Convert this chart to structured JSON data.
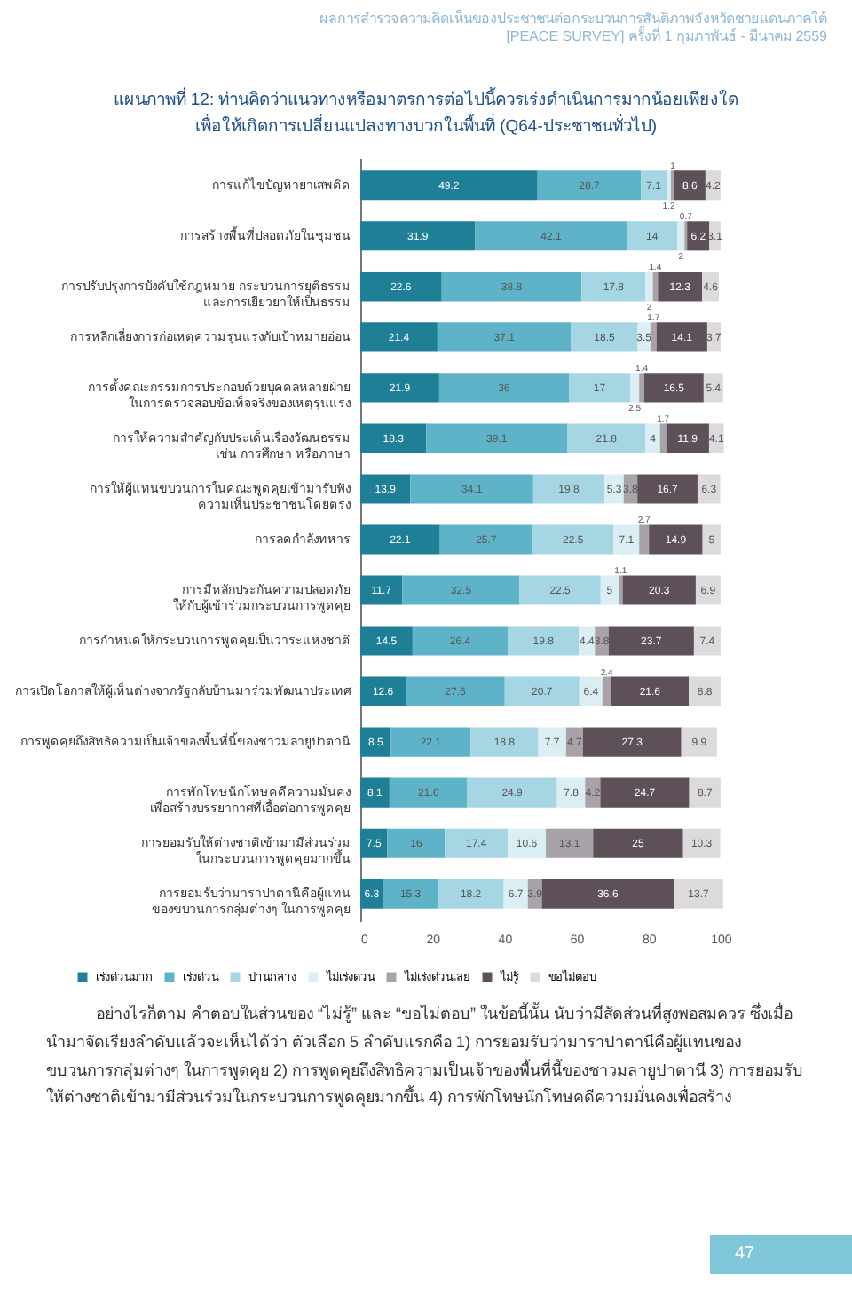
{
  "chart_data": {
    "type": "bar",
    "orientation": "horizontal",
    "stacked": true,
    "title": "แผนภาพที่ 12: ท่านคิดว่าแนวทางหรือมาตรการต่อไปนี้ควรเร่งดำเนินการมากน้อยเพียงใด\nเพื่อให้เกิดการเปลี่ยนแปลงทางบวกในพื้นที่ (Q64-ประชาชนทั่วไป)",
    "annotations": [
      "ผลการสำรวจความคิดเห็นของประชาชนต่อกระบวนการสันติภาพจังหวัดชายแดนภาคใต้",
      "[PEACE SURVEY] ครั้งที่ 1 กุมภาพันธ์ - มีนาคม 2559",
      "อย่างไรก็ตาม คำตอบในส่วนของ “ไม่รู้” และ “ขอไม่ตอบ” ในข้อนี้นั้น นับว่ามีสัดส่วนที่สูงพอสมควร ซึ่งเมื่อนำมาจัดเรียงลำดับแล้วจะเห็นได้ว่า ตัวเลือก 5 ลำดับแรกคือ 1) การยอมรับว่ามาราปาตานีคือผู้แทนของขบวนการกลุ่มต่างๆ ในการพูดคุย 2) การพูดคุยถึงสิทธิความเป็นเจ้าของพื้นที่นี้ของชาวมลายูปาตานี 3) การยอมรับให้ต่างชาติเข้ามามีส่วนร่วมในกระบวนการพูดคุยมากขึ้น 4) การพักโทษนักโทษคดีความมั่นคงเพื่อสร้าง",
      "47"
    ],
    "categories": [
      "การแก้ไขปัญหายาเสพติด",
      "การสร้างพื้นที่ปลอดภัยในชุมชน",
      "การปรับปรุงการบังคับใช้กฎหมาย กระบวนการยุติธรรม\nและการเยียวยาให้เป็นธรรม",
      "การหลีกเลี่ยงการก่อเหตุความรุนแรงกับเป้าหมายอ่อน",
      "การตั้งคณะกรรมการประกอบด้วยบุคคลหลายฝ่าย\nในการตรวจสอบข้อเท็จจริงของเหตุรุนแรง",
      "การให้ความสำคัญกับประเด็นเรื่องวัฒนธรรม\nเช่น การศึกษา หรือภาษา",
      "การให้ผู้แทนขบวนการในคณะพูดคุยเข้ามารับฟัง\nความเห็นประชาชนโดยตรง",
      "การลดกำลังทหาร",
      "การมีหลักประกันความปลอดภัย\nให้กับผู้เข้าร่วมกระบวนการพูดคุย",
      "การกำหนดให้กระบวนการพูดคุยเป็นวาระแห่งชาติ",
      "การเปิดโอกาสให้ผู้เห็นต่างจากรัฐกลับบ้านมาร่วมพัฒนาประเทศ",
      "การพูดคุยถึงสิทธิความเป็นเจ้าของพื้นที่นี้ของชาวมลายูปาตานี",
      "การพักโทษนักโทษคดีความมั่นคง\nเพื่อสร้างบรรยากาศที่เอื้อต่อการพูดคุย",
      "การยอมรับให้ต่างชาติเข้ามามีส่วนร่วม\nในกระบวนการพูดคุยมากขึ้น",
      "การยอมรับว่ามาราปาตานีคือผู้แทน\nของขบวนการกลุ่มต่างๆ ในการพูดคุย"
    ],
    "series": [
      {
        "name": "เร่งด่วนมาก",
        "color": "#1f7f96",
        "values": [
          49.2,
          31.9,
          22.6,
          21.4,
          21.9,
          18.3,
          13.9,
          22.1,
          11.7,
          14.5,
          12.6,
          8.5,
          8.1,
          7.5,
          6.3
        ]
      },
      {
        "name": "เร่งด่วน",
        "color": "#5fb3c9",
        "values": [
          28.7,
          42.1,
          38.8,
          37.1,
          36,
          39.1,
          34.1,
          25.7,
          32.5,
          26.4,
          27.5,
          22.1,
          21.6,
          16,
          15.3
        ]
      },
      {
        "name": "ปานกลาง",
        "color": "#a6d6e3",
        "values": [
          7.1,
          14,
          17.8,
          18.5,
          17,
          21.8,
          19.8,
          22.5,
          22.5,
          19.8,
          20.7,
          18.8,
          24.9,
          17.4,
          18.2
        ]
      },
      {
        "name": "ไม่เร่งด่วน",
        "color": "#daeef3",
        "values": [
          1.2,
          2,
          2,
          3.5,
          2.5,
          4,
          5.3,
          7.1,
          5,
          4.4,
          6.4,
          7.7,
          7.8,
          10.6,
          6.7
        ]
      },
      {
        "name": "ไม่เร่งด่วนเลย",
        "color": "#a7a3a8",
        "values": [
          1.0,
          0.7,
          1.4,
          1.7,
          1.4,
          1.7,
          3.8,
          2.7,
          1.1,
          3.8,
          2.4,
          4.7,
          4.2,
          13.1,
          3.9
        ]
      },
      {
        "name": "ไม่รู้",
        "color": "#5e5058",
        "values": [
          8.6,
          6.2,
          12.3,
          14.1,
          16.5,
          11.9,
          16.7,
          14.9,
          20.3,
          23.7,
          21.6,
          27.3,
          24.7,
          25,
          36.6
        ]
      },
      {
        "name": "ขอไม่ตอบ",
        "color": "#dcdadd",
        "values": [
          4.2,
          3.1,
          4.6,
          3.7,
          5.4,
          4.1,
          6.3,
          5,
          6.9,
          7.4,
          8.8,
          9.9,
          8.7,
          10.3,
          13.7
        ]
      }
    ],
    "xlim": [
      0,
      101
    ],
    "xticks": [
      0,
      20,
      40,
      60,
      80,
      100
    ],
    "data_labels": true,
    "legend": "bottom",
    "grid": false
  }
}
